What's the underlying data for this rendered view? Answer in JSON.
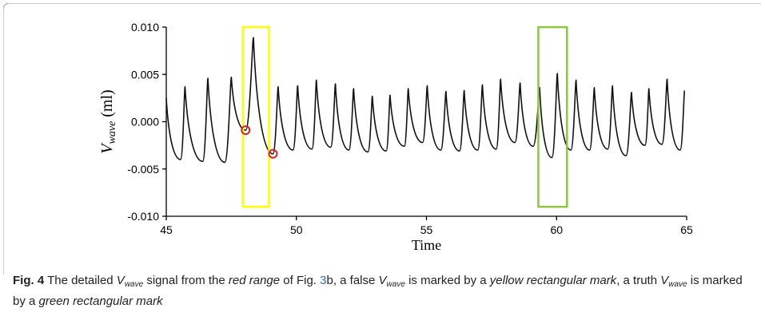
{
  "chart_data": {
    "type": "line",
    "xlabel": "Time",
    "ylabel_main": "V",
    "ylabel_sub": "wave",
    "ylabel_unit": "(ml)",
    "xlim": [
      45,
      65
    ],
    "ylim": [
      -0.01,
      0.01
    ],
    "xticks": [
      "45",
      "50",
      "55",
      "60",
      "65"
    ],
    "yticks": [
      "0.010",
      "0.005",
      "0.000",
      "-0.005",
      "-0.010"
    ],
    "series": [
      {
        "color": "#111111",
        "peaks": [
          [
            45.0,
            0.0025
          ],
          [
            45.72,
            0.0037
          ],
          [
            46.6,
            0.0046
          ],
          [
            47.5,
            0.0047
          ],
          [
            48.35,
            0.0089
          ],
          [
            49.3,
            0.0037
          ],
          [
            50.05,
            0.0038
          ],
          [
            50.77,
            0.0044
          ],
          [
            51.5,
            0.004
          ],
          [
            52.2,
            0.0035
          ],
          [
            52.92,
            0.0027
          ],
          [
            53.6,
            0.0028
          ],
          [
            54.3,
            0.0035
          ],
          [
            55.03,
            0.0038
          ],
          [
            55.75,
            0.0032
          ],
          [
            56.45,
            0.0033
          ],
          [
            57.15,
            0.0039
          ],
          [
            57.85,
            0.0045
          ],
          [
            58.6,
            0.0041
          ],
          [
            59.35,
            0.0036
          ],
          [
            60.03,
            0.0051
          ],
          [
            60.75,
            0.0044
          ],
          [
            61.45,
            0.0036
          ],
          [
            62.15,
            0.0038
          ],
          [
            62.88,
            0.0031
          ],
          [
            63.55,
            0.0035
          ],
          [
            64.25,
            0.0045
          ],
          [
            64.92,
            0.0033
          ]
        ],
        "troughs": [
          [
            45.55,
            -0.004
          ],
          [
            46.4,
            -0.0042
          ],
          [
            47.25,
            -0.0043
          ],
          [
            48.05,
            -0.0009
          ],
          [
            49.1,
            -0.0034
          ],
          [
            49.87,
            -0.003
          ],
          [
            50.6,
            -0.0029
          ],
          [
            51.32,
            -0.0027
          ],
          [
            52.02,
            -0.003
          ],
          [
            52.75,
            -0.0032
          ],
          [
            53.45,
            -0.0031
          ],
          [
            54.15,
            -0.0026
          ],
          [
            54.85,
            -0.0022
          ],
          [
            55.55,
            -0.003
          ],
          [
            56.27,
            -0.0031
          ],
          [
            56.97,
            -0.003
          ],
          [
            57.68,
            -0.0029
          ],
          [
            58.4,
            -0.0022
          ],
          [
            59.1,
            -0.0026
          ],
          [
            59.82,
            -0.0038
          ],
          [
            60.55,
            -0.003
          ],
          [
            61.27,
            -0.003
          ],
          [
            61.97,
            -0.0029
          ],
          [
            62.67,
            -0.0036
          ],
          [
            63.4,
            -0.0025
          ],
          [
            64.05,
            -0.0024
          ],
          [
            64.75,
            -0.003
          ]
        ]
      }
    ],
    "markers": [
      {
        "x": 48.05,
        "y": -0.0009,
        "color": "#e02020"
      },
      {
        "x": 49.1,
        "y": -0.0034,
        "color": "#e02020"
      }
    ],
    "rectangles": [
      {
        "x0": 47.95,
        "x1": 48.95,
        "y0": -0.009,
        "y1": 0.01,
        "color": "#ffff00",
        "meaning": "false"
      },
      {
        "x0": 59.3,
        "x1": 60.4,
        "y0": -0.009,
        "y1": 0.01,
        "color": "#8dc63f",
        "meaning": "truth"
      }
    ]
  },
  "caption": {
    "label": "Fig. 4",
    "t1": "  The detailed ",
    "v1": "V",
    "s1": "wave",
    "t2": " signal from the ",
    "i1": "red range",
    "t3": " of Fig. ",
    "ref": "3",
    "t4": "b, a false ",
    "v2": "V",
    "s2": "wave",
    "t5": " is marked by a ",
    "i2": "yellow rectangular mark",
    "t6": ", a truth ",
    "v3": "V",
    "s3": "wave",
    "t7": " is marked by a ",
    "i3": "green rectangular mark"
  },
  "colors": {
    "border": "#9a9a9a",
    "link": "#2a6fb5"
  }
}
